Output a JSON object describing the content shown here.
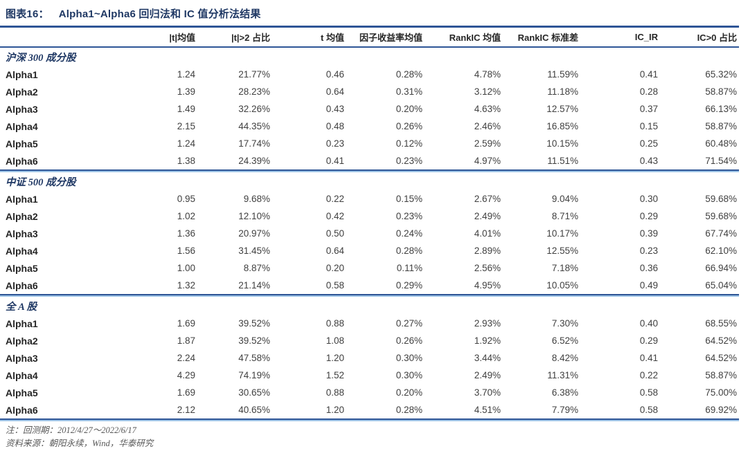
{
  "header": {
    "figure_label": "图表16：",
    "figure_title": "Alpha1~Alpha6 回归法和 IC 值分析法结果"
  },
  "table": {
    "columns": [
      "",
      "|t|均值",
      "|t|>2 占比",
      "t 均值",
      "因子收益率均值",
      "RankIC 均值",
      "RankIC 标准差",
      "IC_IR",
      "IC>0 占比"
    ],
    "sections": [
      {
        "name": "沪深 300 成分股",
        "rows": [
          [
            "Alpha1",
            "1.24",
            "21.77%",
            "0.46",
            "0.28%",
            "4.78%",
            "11.59%",
            "0.41",
            "65.32%"
          ],
          [
            "Alpha2",
            "1.39",
            "28.23%",
            "0.64",
            "0.31%",
            "3.12%",
            "11.18%",
            "0.28",
            "58.87%"
          ],
          [
            "Alpha3",
            "1.49",
            "32.26%",
            "0.43",
            "0.20%",
            "4.63%",
            "12.57%",
            "0.37",
            "66.13%"
          ],
          [
            "Alpha4",
            "2.15",
            "44.35%",
            "0.48",
            "0.26%",
            "2.46%",
            "16.85%",
            "0.15",
            "58.87%"
          ],
          [
            "Alpha5",
            "1.24",
            "17.74%",
            "0.23",
            "0.12%",
            "2.59%",
            "10.15%",
            "0.25",
            "60.48%"
          ],
          [
            "Alpha6",
            "1.38",
            "24.39%",
            "0.41",
            "0.23%",
            "4.97%",
            "11.51%",
            "0.43",
            "71.54%"
          ]
        ]
      },
      {
        "name": "中证 500 成分股",
        "rows": [
          [
            "Alpha1",
            "0.95",
            "9.68%",
            "0.22",
            "0.15%",
            "2.67%",
            "9.04%",
            "0.30",
            "59.68%"
          ],
          [
            "Alpha2",
            "1.02",
            "12.10%",
            "0.42",
            "0.23%",
            "2.49%",
            "8.71%",
            "0.29",
            "59.68%"
          ],
          [
            "Alpha3",
            "1.36",
            "20.97%",
            "0.50",
            "0.24%",
            "4.01%",
            "10.17%",
            "0.39",
            "67.74%"
          ],
          [
            "Alpha4",
            "1.56",
            "31.45%",
            "0.64",
            "0.28%",
            "2.89%",
            "12.55%",
            "0.23",
            "62.10%"
          ],
          [
            "Alpha5",
            "1.00",
            "8.87%",
            "0.20",
            "0.11%",
            "2.56%",
            "7.18%",
            "0.36",
            "66.94%"
          ],
          [
            "Alpha6",
            "1.32",
            "21.14%",
            "0.58",
            "0.29%",
            "4.95%",
            "10.05%",
            "0.49",
            "65.04%"
          ]
        ]
      },
      {
        "name": "全 A 股",
        "rows": [
          [
            "Alpha1",
            "1.69",
            "39.52%",
            "0.88",
            "0.27%",
            "2.93%",
            "7.30%",
            "0.40",
            "68.55%"
          ],
          [
            "Alpha2",
            "1.87",
            "39.52%",
            "1.08",
            "0.26%",
            "1.92%",
            "6.52%",
            "0.29",
            "64.52%"
          ],
          [
            "Alpha3",
            "2.24",
            "47.58%",
            "1.20",
            "0.30%",
            "3.44%",
            "8.42%",
            "0.41",
            "64.52%"
          ],
          [
            "Alpha4",
            "4.29",
            "74.19%",
            "1.52",
            "0.30%",
            "2.49%",
            "11.31%",
            "0.22",
            "58.87%"
          ],
          [
            "Alpha5",
            "1.69",
            "30.65%",
            "0.88",
            "0.20%",
            "3.70%",
            "6.38%",
            "0.58",
            "75.00%"
          ],
          [
            "Alpha6",
            "2.12",
            "40.65%",
            "1.20",
            "0.28%",
            "4.51%",
            "7.79%",
            "0.58",
            "69.92%"
          ]
        ]
      }
    ]
  },
  "notes": [
    "注：回测期：2012/4/27～2022/6/17",
    "资料来源：朝阳永续，Wind，华泰研究"
  ],
  "colors": {
    "title_navy": "#1F3864",
    "rule_navy": "#2E5596",
    "rule_light_blue": "#9DC3E6",
    "body_text": "#404040",
    "note_gray": "#595959"
  }
}
